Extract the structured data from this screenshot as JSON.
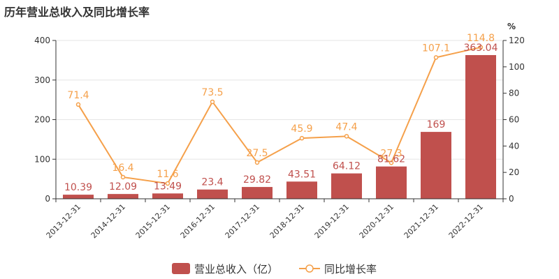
{
  "chart_data": {
    "type": "bar",
    "title": "历年营业总收入及同比增长率",
    "categories": [
      "2013-12-31",
      "2014-12-31",
      "2015-12-31",
      "2016-12-31",
      "2017-12-31",
      "2018-12-31",
      "2019-12-31",
      "2020-12-31",
      "2021-12-31",
      "2022-12-31"
    ],
    "series": [
      {
        "name": "营业总收入（亿）",
        "type": "bar",
        "axis": "left",
        "color": "#c0504d",
        "values": [
          10.39,
          12.09,
          13.49,
          23.4,
          29.82,
          43.51,
          64.12,
          81.62,
          169,
          363.04
        ],
        "labels": [
          "10.39",
          "12.09",
          "13.49",
          "23.4",
          "29.82",
          "43.51",
          "64.12",
          "81.62",
          "169",
          "363.04"
        ]
      },
      {
        "name": "同比增长率",
        "type": "line",
        "axis": "right",
        "color": "#f5a04a",
        "values": [
          71.4,
          16.4,
          11.6,
          73.5,
          27.5,
          45.9,
          47.4,
          27.3,
          107.1,
          114.8
        ],
        "labels": [
          "71.4",
          "16.4",
          "11.6",
          "73.5",
          "27.5",
          "45.9",
          "47.4",
          "27.3",
          "107.1",
          "114.8"
        ]
      }
    ],
    "y_left": {
      "min": 0,
      "max": 400,
      "ticks": [
        0,
        100,
        200,
        300,
        400
      ]
    },
    "y_right": {
      "min": 0,
      "max": 120,
      "ticks": [
        0,
        20,
        40,
        60,
        80,
        100,
        120
      ],
      "unit": "%"
    },
    "grid": true,
    "legend_position": "bottom"
  }
}
